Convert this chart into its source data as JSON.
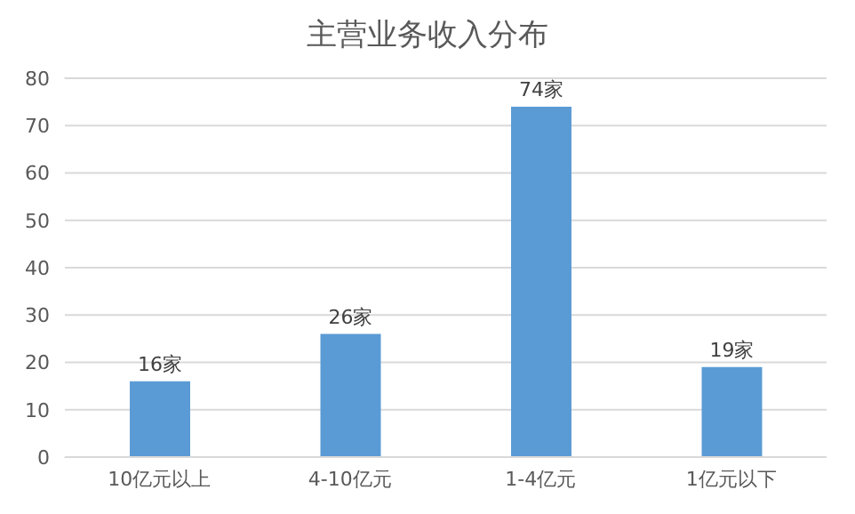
{
  "chart_data": {
    "type": "bar",
    "title": "主营业务收入分布",
    "categories": [
      "10亿元以上",
      "4-10亿元",
      "1-4亿元",
      "1亿元以下"
    ],
    "values": [
      16,
      26,
      74,
      19
    ],
    "value_labels": [
      "16家",
      "26家",
      "74家",
      "19家"
    ],
    "color": "#5b9bd5",
    "ylim": [
      0,
      80
    ],
    "yticks": [
      0,
      10,
      20,
      30,
      40,
      50,
      60,
      70,
      80
    ],
    "grid": "y",
    "legend": false
  }
}
